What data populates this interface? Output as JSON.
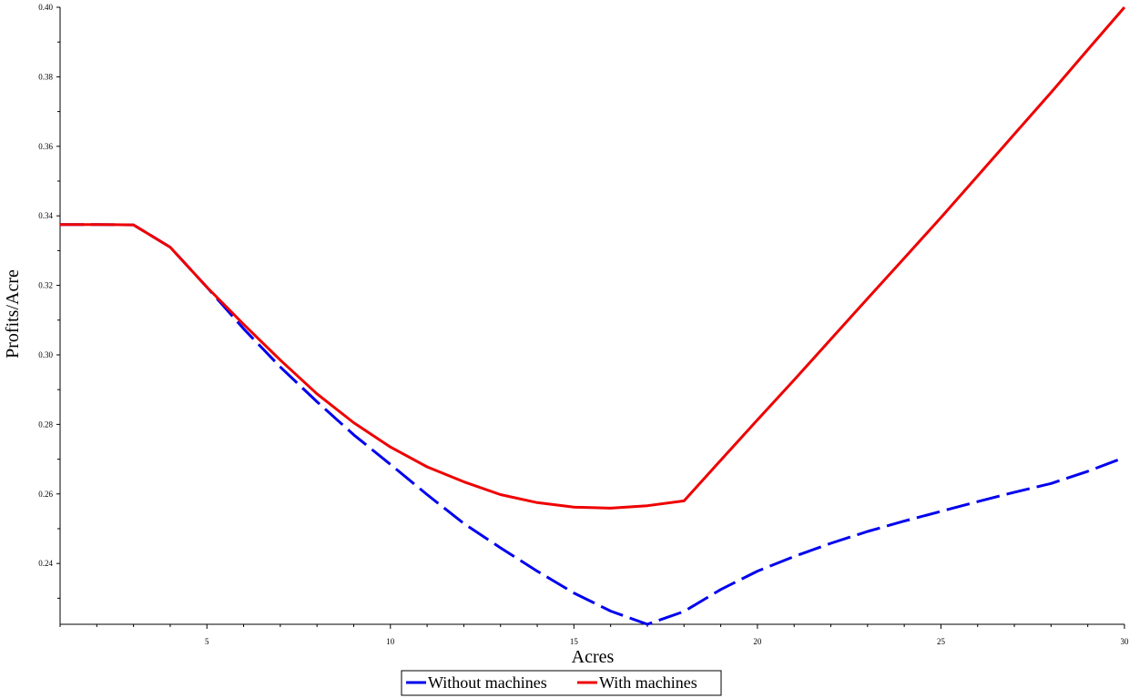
{
  "chart_data": {
    "type": "line",
    "title": "",
    "xlabel": "Acres",
    "ylabel": "Profits/Acre",
    "xlim": [
      1,
      30
    ],
    "ylim": [
      0.2225,
      0.4
    ],
    "x_ticks_major": [
      5,
      10,
      15,
      20,
      25,
      30
    ],
    "x_tick_labels": [
      "5",
      "10",
      "15",
      "20",
      "25",
      "30"
    ],
    "y_ticks": [
      0.24,
      0.26,
      0.28,
      0.3,
      0.32,
      0.34,
      0.36,
      0.38,
      0.4
    ],
    "y_tick_labels": [
      "0.24",
      "0.26",
      "0.28",
      "0.30",
      "0.32",
      "0.34",
      "0.36",
      "0.38",
      "0.40"
    ],
    "grid": false,
    "legend_position": "bottom-center",
    "series": [
      {
        "name": "Without machines",
        "color": "#0000ee",
        "dash": "dashed",
        "x": [
          1,
          2,
          3,
          4,
          5,
          6,
          7,
          8,
          9,
          10,
          11,
          12,
          13,
          14,
          15,
          16,
          17,
          18,
          19,
          20,
          21,
          22,
          23,
          24,
          25,
          26,
          27,
          28,
          29,
          30
        ],
        "values": [
          0.3375,
          0.3375,
          0.3374,
          0.331,
          0.3195,
          0.3075,
          0.2965,
          0.2865,
          0.277,
          0.2685,
          0.2598,
          0.2515,
          0.2445,
          0.2378,
          0.2315,
          0.2263,
          0.2225,
          0.2262,
          0.2325,
          0.2378,
          0.242,
          0.2458,
          0.2492,
          0.2522,
          0.255,
          0.2578,
          0.2605,
          0.263,
          0.2665,
          0.2705
        ]
      },
      {
        "name": "With machines",
        "color": "#ee0000",
        "dash": "solid",
        "x": [
          1,
          2,
          3,
          4,
          5,
          6,
          7,
          8,
          9,
          10,
          11,
          12,
          13,
          14,
          15,
          16,
          17,
          18,
          19,
          20,
          21,
          22,
          23,
          24,
          25,
          26,
          27,
          28,
          29,
          30
        ],
        "values": [
          0.3375,
          0.3375,
          0.3374,
          0.331,
          0.3195,
          0.3088,
          0.2985,
          0.2888,
          0.2805,
          0.2735,
          0.2678,
          0.2635,
          0.2598,
          0.2575,
          0.2562,
          0.2559,
          0.2566,
          0.258,
          0.2697,
          0.2813,
          0.2928,
          0.3045,
          0.3162,
          0.3278,
          0.3395,
          0.3515,
          0.3635,
          0.3755,
          0.3878,
          0.4
        ]
      }
    ]
  }
}
